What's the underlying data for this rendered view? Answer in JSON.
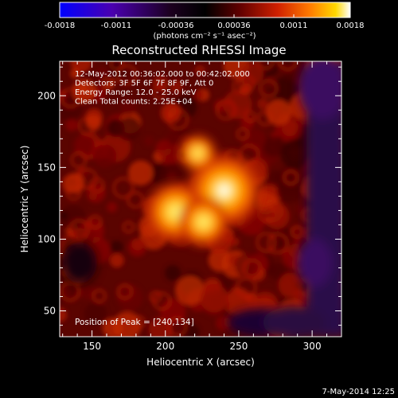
{
  "colorbar": {
    "tick_labels": [
      "-0.0018",
      "-0.0011",
      "-0.00036",
      "0.00036",
      "0.0011",
      "0.0018"
    ],
    "unit_label": "(photons cm⁻² s⁻¹ asec⁻²)",
    "range": [
      -0.0018,
      0.0018
    ]
  },
  "title": "Reconstructed RHESSI Image",
  "annotations": [
    "12-May-2012 00:36:02.000 to 00:42:02.000",
    "Detectors: 3F 5F 6F 7F 8F 9F, Att 0",
    "Energy Range: 12.0 - 25.0 keV",
    "Clean     Total counts: 2.25E+04"
  ],
  "peak_label": "Position of Peak = [240,134]",
  "footer_date": "7-May-2014 12:25",
  "chart_data": {
    "type": "heatmap",
    "title": "Reconstructed RHESSI Image",
    "xlabel": "Heliocentric X (arcsec)",
    "ylabel": "Heliocentric Y (arcsec)",
    "xlim": [
      128,
      320
    ],
    "ylim": [
      32,
      224
    ],
    "x_ticks": [
      150,
      200,
      250,
      300
    ],
    "y_ticks": [
      50,
      100,
      150,
      200
    ],
    "peak_position": [
      240,
      134
    ],
    "peak_value": 0.0018,
    "sources": [
      {
        "x": 240,
        "y": 134,
        "peak": 0.0018
      },
      {
        "x": 207,
        "y": 119,
        "peak": 0.00145
      },
      {
        "x": 226,
        "y": 112,
        "peak": 0.0012
      },
      {
        "x": 222,
        "y": 160,
        "peak": 0.0009
      }
    ],
    "colormap": [
      "#0000ff",
      "#4a00a8",
      "#1a001a",
      "#000000",
      "#3a0000",
      "#a00000",
      "#e04000",
      "#ff8a00",
      "#ffd000",
      "#ffffff"
    ],
    "grid": false
  }
}
